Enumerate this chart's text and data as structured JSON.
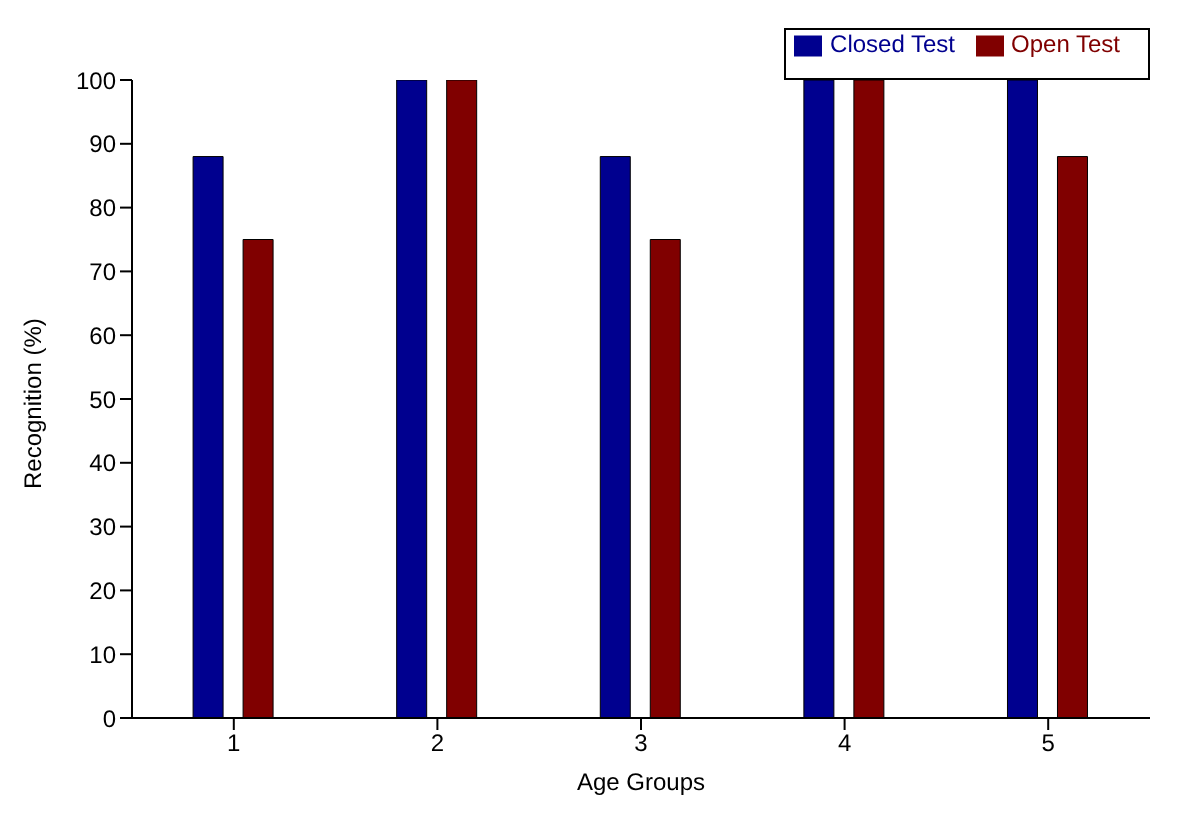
{
  "chart_data": {
    "type": "bar",
    "xlabel": "Age Groups",
    "ylabel": "Recognition (%)",
    "categories": [
      "1",
      "2",
      "3",
      "4",
      "5"
    ],
    "series": [
      {
        "name": "Closed Test",
        "color": "#00008f",
        "values": [
          88,
          100,
          88,
          100,
          100
        ]
      },
      {
        "name": "Open Test",
        "color": "#800000",
        "values": [
          75,
          100,
          75,
          100,
          88
        ]
      }
    ],
    "ylim": [
      0,
      100
    ],
    "yticks": [
      0,
      10,
      20,
      30,
      40,
      50,
      60,
      70,
      80,
      90,
      100
    ],
    "legend": "top right"
  }
}
